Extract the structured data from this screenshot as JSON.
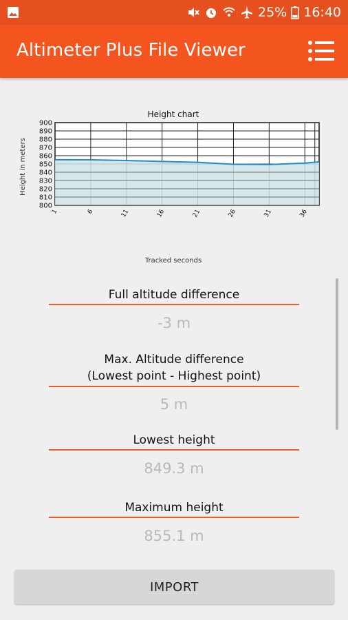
{
  "status_bar": {
    "battery": "25%",
    "time": "16:40",
    "icons": [
      "image-icon",
      "mute-icon",
      "alarm-icon",
      "wifi-icon",
      "airplane-icon",
      "battery-icon"
    ]
  },
  "app_bar": {
    "title": "Altimeter Plus File Viewer",
    "menu_icon": "menu-icon"
  },
  "colors": {
    "status_bar": "#e5501e",
    "app_bar": "#f4551f",
    "accent_rule": "#f35a2a",
    "chart_line": "#1f8fc8",
    "chart_fill": "#cfe3e6"
  },
  "chart_data": {
    "type": "area",
    "title": "Height chart",
    "xlabel": "Tracked seconds",
    "ylabel": "Height in meters",
    "ylim": [
      800,
      900
    ],
    "y_ticks": [
      "800",
      "810",
      "820",
      "830",
      "840",
      "850",
      "860",
      "870",
      "880",
      "890",
      "900"
    ],
    "x_ticks": [
      "1",
      "6",
      "11",
      "16",
      "21",
      "26",
      "31",
      "36"
    ],
    "x": [
      1,
      6,
      11,
      16,
      21,
      26,
      31,
      36,
      38
    ],
    "series": [
      {
        "values": [
          855.1,
          855.0,
          854.2,
          853.0,
          852.0,
          849.6,
          849.3,
          851.0,
          852.5
        ]
      }
    ],
    "grid": true
  },
  "stats": {
    "full_diff_label": "Full altitude difference",
    "full_diff_value": "-3 m",
    "max_diff_label_line1": "Max. Altitude difference",
    "max_diff_label_line2": "(Lowest point - Highest point)",
    "max_diff_value": "5 m",
    "lowest_label": "Lowest height",
    "lowest_value": "849.3 m",
    "maximum_label": "Maximum height",
    "maximum_value": "855.1 m"
  },
  "import_button": "IMPORT"
}
